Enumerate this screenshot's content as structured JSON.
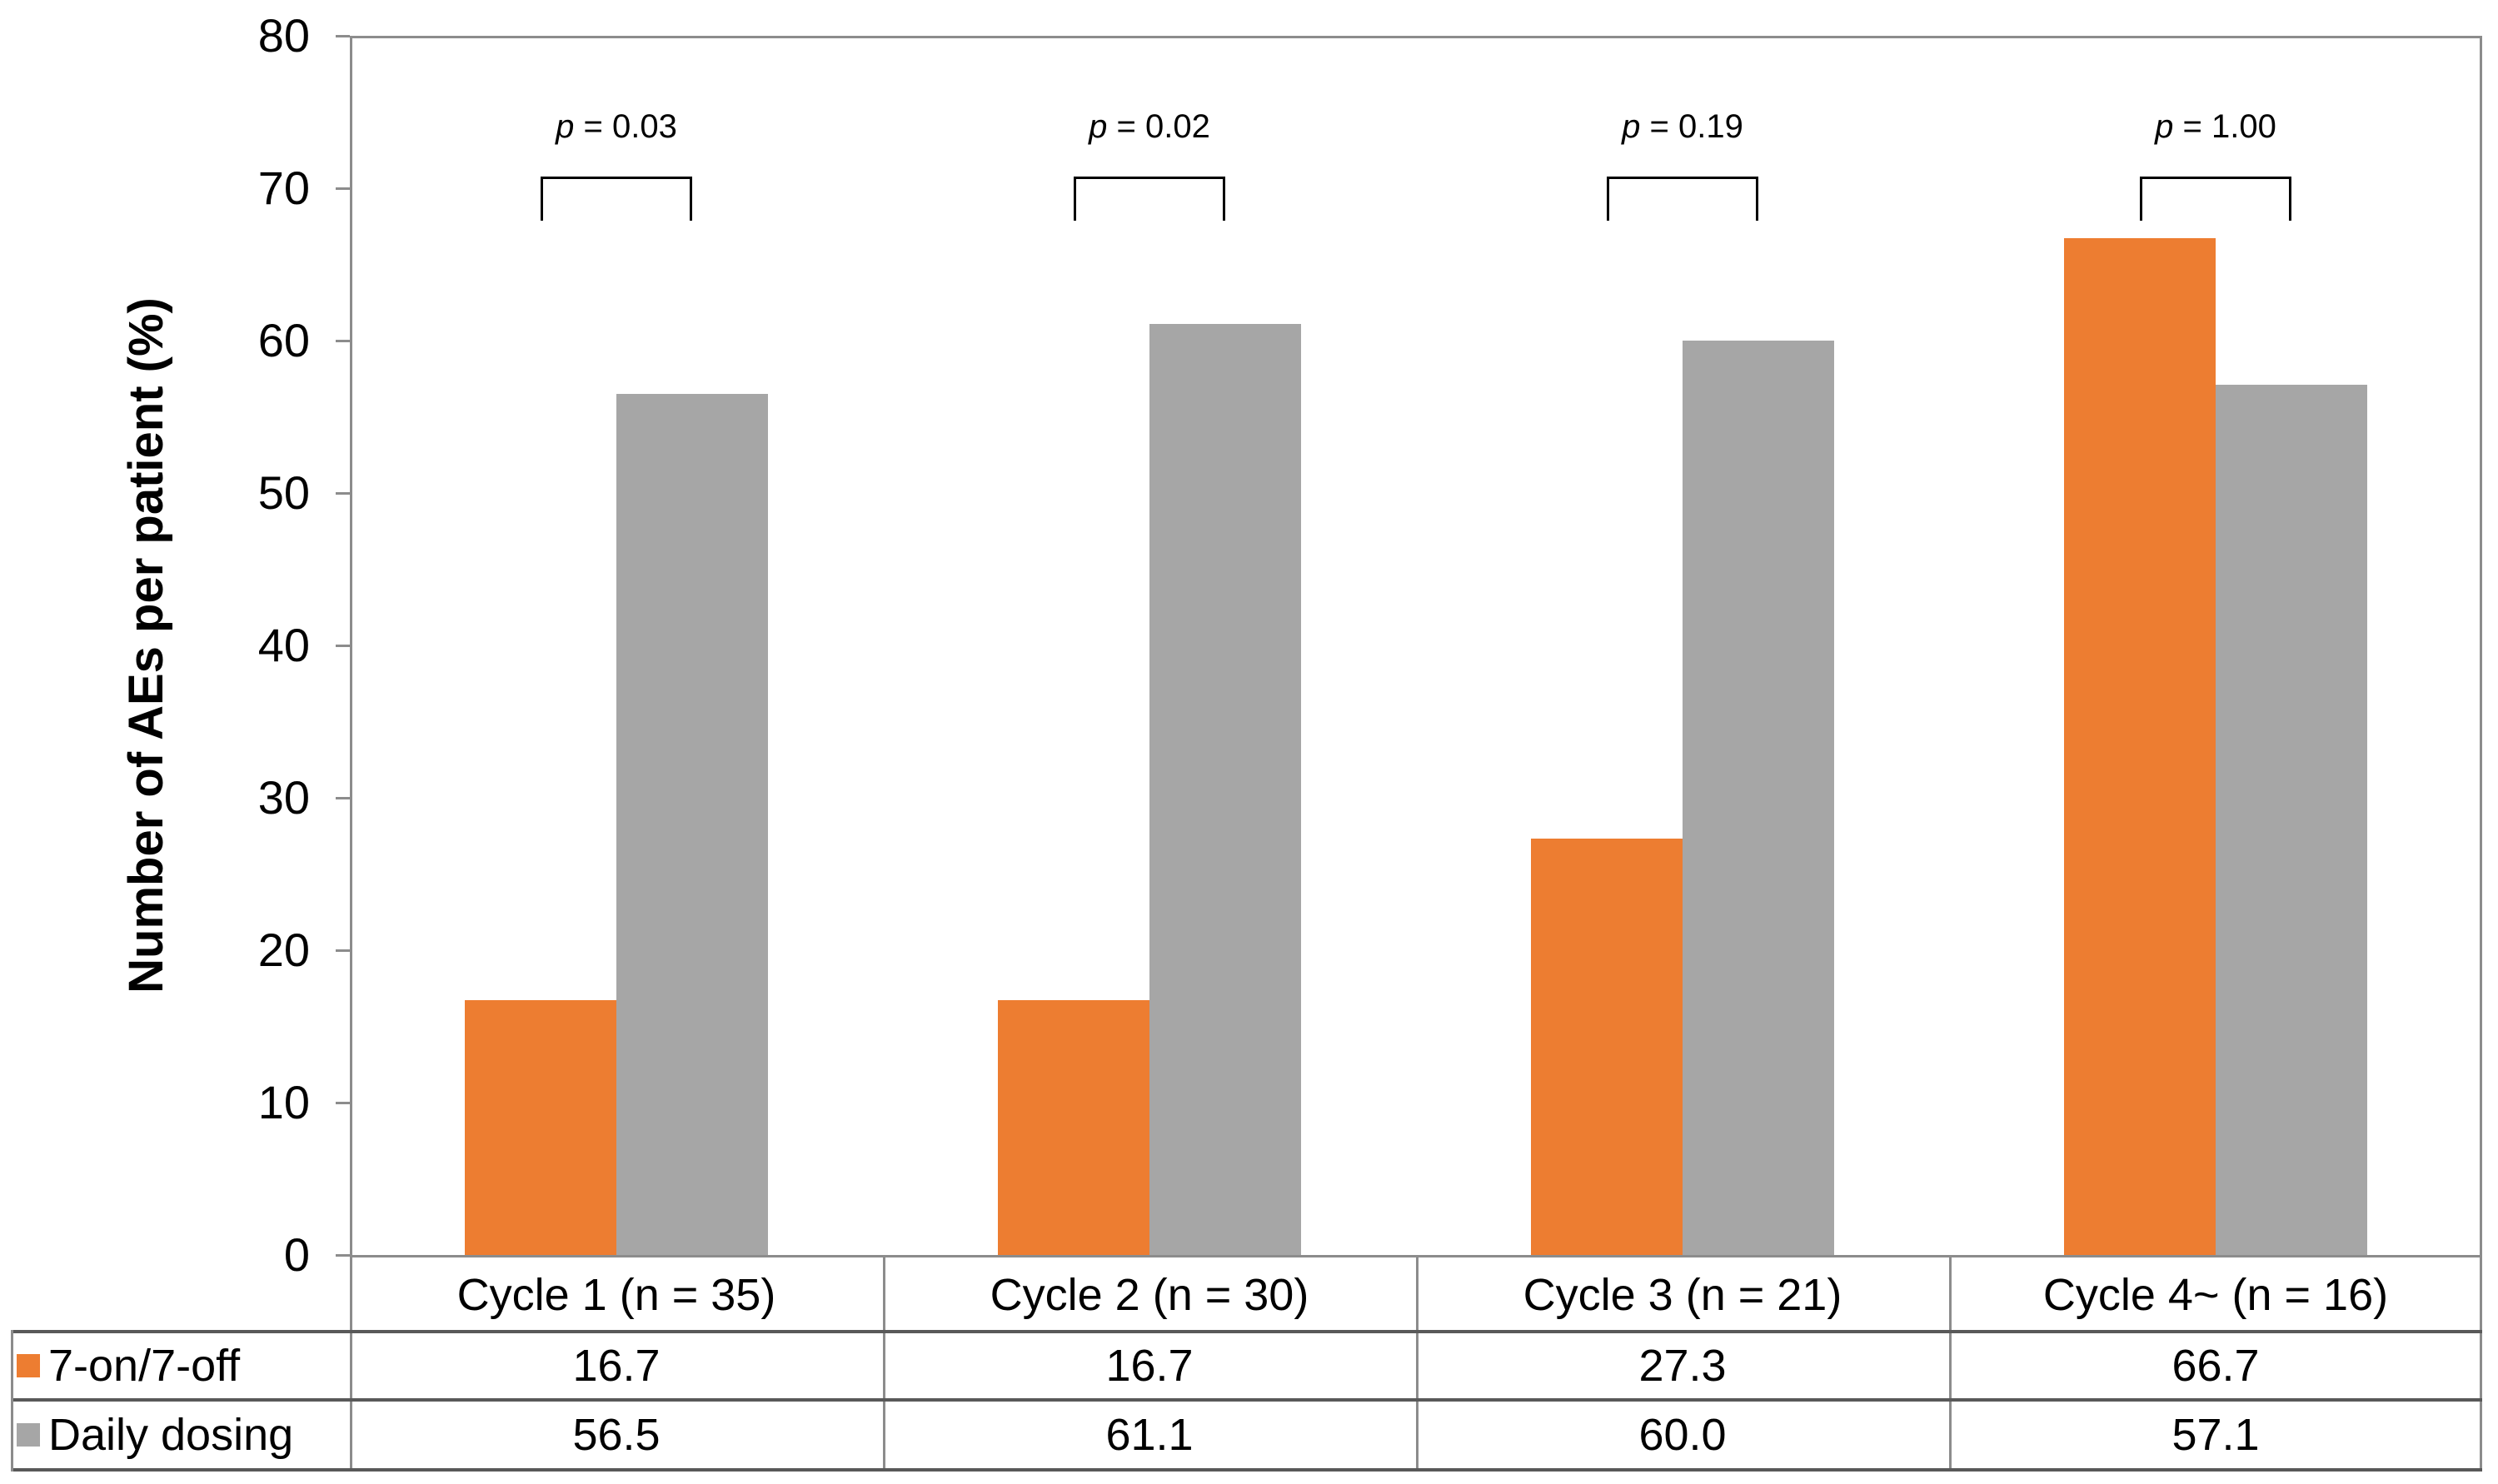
{
  "chart_data": {
    "type": "bar",
    "title": "",
    "ylabel": "Number of AEs per patient (%)",
    "xlabel": "",
    "ylim": [
      0,
      80
    ],
    "ytick_step": 10,
    "ytick_labels": [
      "0",
      "10",
      "20",
      "30",
      "40",
      "50",
      "60",
      "70",
      "80"
    ],
    "grid": false,
    "legend_position": "table-left",
    "categories": [
      "Cycle 1 (n = 35)",
      "Cycle 2 (n = 30)",
      "Cycle 3 (n = 21)",
      "Cycle 4~ (n = 16)"
    ],
    "series": [
      {
        "name": "7-on/7-off",
        "color": "#ED7D31",
        "values": [
          16.7,
          16.7,
          27.3,
          66.7
        ],
        "display_values": [
          "16.7",
          "16.7",
          "27.3",
          "66.7"
        ]
      },
      {
        "name": "Daily dosing",
        "color": "#A6A6A6",
        "values": [
          56.5,
          61.1,
          60.0,
          57.1
        ],
        "display_values": [
          "56.5",
          "61.1",
          "60.0",
          "57.1"
        ]
      }
    ],
    "p_value_annotations": [
      {
        "italic_var": "p",
        "text": " = 0.03"
      },
      {
        "italic_var": "p",
        "text": " = 0.02"
      },
      {
        "italic_var": "p",
        "text": " = 0.19"
      },
      {
        "italic_var": "p",
        "text": " = 1.00"
      }
    ]
  }
}
